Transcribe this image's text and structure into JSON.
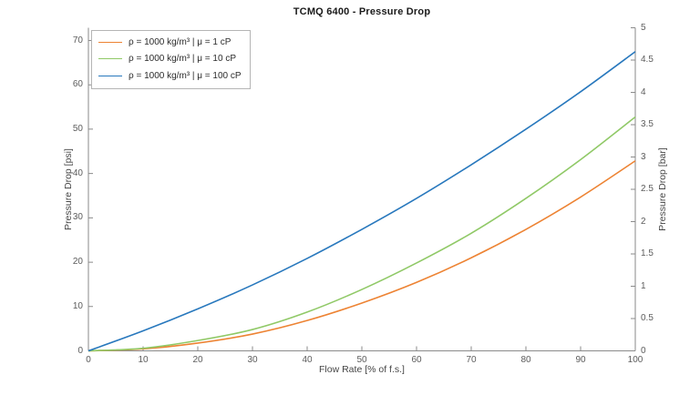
{
  "figure": {
    "title": "TCMQ 6400 - Pressure Drop",
    "x_axis": {
      "label": "Flow Rate [% of f.s.]",
      "tick_labels": [
        "0",
        "10",
        "20",
        "30",
        "40",
        "50",
        "60",
        "70",
        "80",
        "90",
        "100"
      ]
    },
    "y_axis_left": {
      "label": "Pressure Drop [psi]",
      "tick_labels": [
        "0",
        "10",
        "20",
        "30",
        "40",
        "50",
        "60",
        "70"
      ]
    },
    "y_axis_right": {
      "label": "Pressure Drop [bar]",
      "tick_labels": [
        "0",
        "0.5",
        "1",
        "1.5",
        "2",
        "2.5",
        "3",
        "3.5",
        "4",
        "4.5",
        "5"
      ]
    }
  },
  "legend": {
    "position": "top-left",
    "items": [
      {
        "label": "ρ = 1000 kg/m³ | μ = 1 cP",
        "color": "#ED8333"
      },
      {
        "label": "ρ = 1000 kg/m³ | μ = 10 cP",
        "color": "#90C967"
      },
      {
        "label": "ρ = 1000 kg/m³ | μ = 100 cP",
        "color": "#2878BD"
      }
    ]
  },
  "chart_data": {
    "type": "line",
    "title": "TCMQ 6400 - Pressure Drop",
    "xlabel": "Flow Rate [% of f.s.]",
    "ylabel_left": "Pressure Drop [psi]",
    "ylabel_right": "Pressure Drop [bar]",
    "xlim": [
      0,
      100
    ],
    "ylim_left_psi": [
      0,
      70
    ],
    "ylim_right_bar": [
      0,
      5
    ],
    "grid": false,
    "legend_position": "top-left",
    "psi_per_bar": 14.504,
    "x": [
      0,
      10,
      20,
      30,
      40,
      50,
      60,
      70,
      80,
      90,
      100
    ],
    "series": [
      {
        "name": "ρ = 1000 kg/m³ | μ = 1 cP",
        "color": "#ED8333",
        "units": "bar",
        "values": [
          0,
          0.03,
          0.12,
          0.26,
          0.47,
          0.74,
          1.06,
          1.44,
          1.88,
          2.38,
          2.94
        ]
      },
      {
        "name": "ρ = 1000 kg/m³ | μ = 10 cP",
        "color": "#90C967",
        "units": "bar",
        "values": [
          0,
          0.04,
          0.16,
          0.33,
          0.6,
          0.95,
          1.36,
          1.82,
          2.36,
          2.96,
          3.62
        ]
      },
      {
        "name": "ρ = 1000 kg/m³ | μ = 100 cP",
        "color": "#2878BD",
        "units": "bar",
        "values": [
          0,
          0.31,
          0.65,
          1.02,
          1.43,
          1.88,
          2.36,
          2.88,
          3.43,
          4.01,
          4.63
        ]
      }
    ]
  },
  "colors": {
    "axis": "#8a8a8a",
    "tick_label": "#5c5c5c",
    "axis_label": "#454545",
    "title": "#1a1a1a",
    "legend_border": "#b5b5b5",
    "background": "#ffffff"
  }
}
